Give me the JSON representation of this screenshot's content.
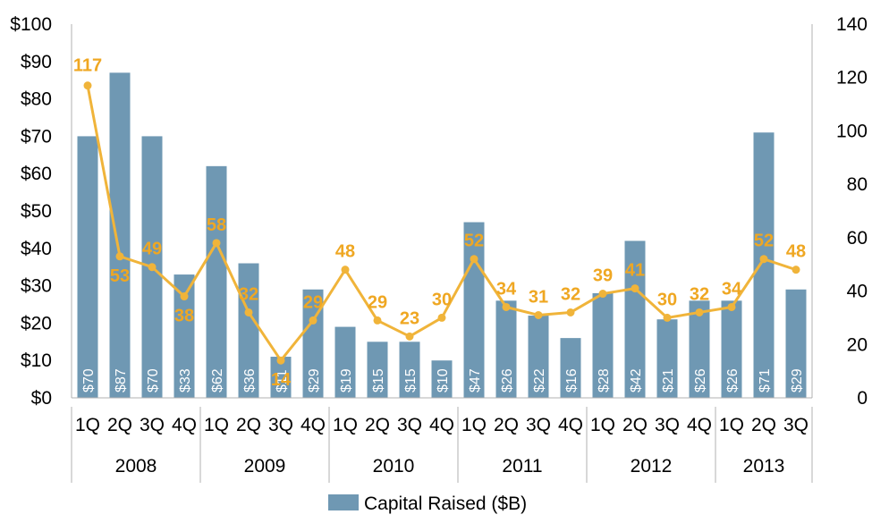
{
  "chart_data": {
    "type": "bar",
    "quarters": [
      "1Q",
      "2Q",
      "3Q",
      "4Q",
      "1Q",
      "2Q",
      "3Q",
      "4Q",
      "1Q",
      "2Q",
      "3Q",
      "4Q",
      "1Q",
      "2Q",
      "3Q",
      "4Q",
      "1Q",
      "2Q",
      "3Q",
      "4Q",
      "1Q",
      "2Q",
      "3Q"
    ],
    "years": [
      {
        "label": "2008",
        "count": 4
      },
      {
        "label": "2009",
        "count": 4
      },
      {
        "label": "2010",
        "count": 4
      },
      {
        "label": "2011",
        "count": 4
      },
      {
        "label": "2012",
        "count": 4
      },
      {
        "label": "2013",
        "count": 3
      }
    ],
    "series": [
      {
        "name": "Capital Raised ($B)",
        "type": "bar",
        "axis": "left",
        "values": [
          70,
          87,
          70,
          33,
          62,
          36,
          11,
          29,
          19,
          15,
          15,
          10,
          47,
          26,
          22,
          16,
          28,
          42,
          21,
          26,
          26,
          71,
          29
        ],
        "labels": [
          "$70",
          "$87",
          "$70",
          "$33",
          "$62",
          "$36",
          "$11",
          "$29",
          "$19",
          "$15",
          "$15",
          "$10",
          "$47",
          "$26",
          "$22",
          "$16",
          "$28",
          "$42",
          "$21",
          "$26",
          "$26",
          "$71",
          "$29"
        ]
      },
      {
        "type": "line",
        "axis": "right",
        "values": [
          117,
          53,
          49,
          38,
          58,
          32,
          14,
          29,
          48,
          29,
          23,
          30,
          52,
          34,
          31,
          32,
          39,
          41,
          30,
          32,
          34,
          52,
          48
        ]
      }
    ],
    "left_axis": {
      "min": 0,
      "max": 100,
      "step": 10,
      "ticks": [
        "$0",
        "$10",
        "$20",
        "$30",
        "$40",
        "$50",
        "$60",
        "$70",
        "$80",
        "$90",
        "$100"
      ]
    },
    "right_axis": {
      "min": 0,
      "max": 140,
      "step": 20,
      "ticks": [
        "0",
        "20",
        "40",
        "60",
        "80",
        "100",
        "120",
        "140"
      ]
    },
    "legend": {
      "position": "bottom",
      "label": "Capital Raised ($B)"
    },
    "grid": false
  },
  "colors": {
    "bar": "#6f98b3",
    "line": "#f0b43a",
    "line_label": "#efa722",
    "axis": "#b0b0b0"
  }
}
